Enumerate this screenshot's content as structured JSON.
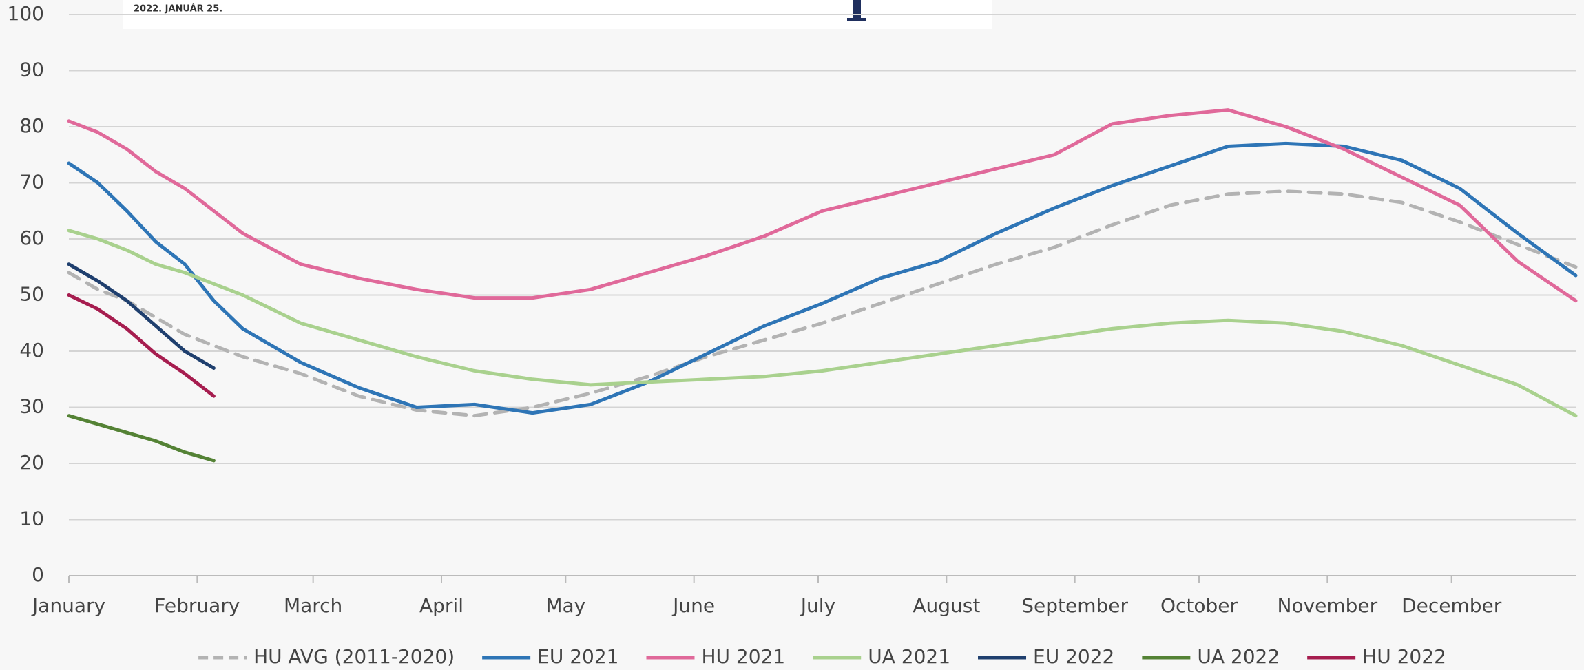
{
  "header_text": "2022. JANUÁR 25.",
  "chart_data": {
    "type": "line",
    "x": [
      1,
      8,
      15,
      22,
      29,
      36,
      43,
      57,
      71,
      85,
      99,
      113,
      127,
      141,
      155,
      169,
      183,
      197,
      211,
      225,
      239,
      253,
      267,
      281,
      295,
      309,
      323,
      337,
      351,
      365
    ],
    "xlim": [
      1,
      365
    ],
    "xticks": [
      {
        "value": 1,
        "label": "January"
      },
      {
        "value": 32,
        "label": "February"
      },
      {
        "value": 60,
        "label": "March"
      },
      {
        "value": 91,
        "label": "April"
      },
      {
        "value": 121,
        "label": "May"
      },
      {
        "value": 152,
        "label": "June"
      },
      {
        "value": 182,
        "label": "July"
      },
      {
        "value": 213,
        "label": "August"
      },
      {
        "value": 244,
        "label": "September"
      },
      {
        "value": 274,
        "label": "October"
      },
      {
        "value": 305,
        "label": "November"
      },
      {
        "value": 335,
        "label": "December"
      }
    ],
    "ylim": [
      0,
      100
    ],
    "yticks": [
      0,
      10,
      20,
      30,
      40,
      50,
      60,
      70,
      80,
      90,
      100
    ],
    "grid": true,
    "legend": "bottom",
    "series": [
      {
        "name": "HU AVG (2011-2020)",
        "color": "#b3b3b3",
        "dashed": true,
        "values": [
          54,
          51,
          49,
          46,
          43,
          41,
          39,
          36,
          32,
          29.5,
          28.5,
          30,
          32.5,
          35.5,
          39,
          42,
          45,
          48.5,
          52,
          55.5,
          58.5,
          62.5,
          66,
          68,
          68.5,
          68,
          66.5,
          63,
          59,
          55
        ]
      },
      {
        "name": "EU 2021",
        "color": "#2e75b6",
        "values": [
          73.5,
          70,
          65,
          59.5,
          55.5,
          49,
          44,
          38,
          33.5,
          30,
          30.5,
          29,
          30.5,
          34.5,
          39.5,
          44.5,
          48.5,
          53,
          56,
          61,
          65.5,
          69.5,
          73,
          76.5,
          77,
          76.5,
          74,
          69,
          61,
          53.5
        ]
      },
      {
        "name": "HU 2021",
        "color": "#e0699a",
        "values": [
          81,
          79,
          76,
          72,
          69,
          65,
          61,
          55.5,
          53,
          51,
          49.5,
          49.5,
          51,
          54,
          57,
          60.5,
          65,
          67.5,
          70,
          72.5,
          75,
          80.5,
          82,
          83,
          80,
          76,
          71,
          66,
          56,
          49
        ]
      },
      {
        "name": "UA 2021",
        "color": "#a9d18e",
        "values": [
          61.5,
          60,
          58,
          55.5,
          54,
          52,
          50,
          45,
          42,
          39,
          36.5,
          35,
          34,
          34.5,
          35,
          35.5,
          36.5,
          38,
          39.5,
          41,
          42.5,
          44,
          45,
          45.5,
          45,
          43.5,
          41,
          37.5,
          34,
          28.5
        ]
      },
      {
        "name": "EU 2022",
        "color": "#1f3f6e",
        "values": [
          55.5,
          52.5,
          49,
          44.5,
          40,
          37,
          null,
          null,
          null,
          null,
          null,
          null,
          null,
          null,
          null,
          null,
          null,
          null,
          null,
          null,
          null,
          null,
          null,
          null,
          null,
          null,
          null,
          null,
          null,
          null
        ]
      },
      {
        "name": "UA 2022",
        "color": "#548235",
        "values": [
          28.5,
          27,
          25.5,
          24,
          22,
          20.5,
          null,
          null,
          null,
          null,
          null,
          null,
          null,
          null,
          null,
          null,
          null,
          null,
          null,
          null,
          null,
          null,
          null,
          null,
          null,
          null,
          null,
          null,
          null,
          null
        ]
      },
      {
        "name": "HU 2022",
        "color": "#a61d4f",
        "values": [
          50,
          47.5,
          44,
          39.5,
          36,
          32,
          null,
          null,
          null,
          null,
          null,
          null,
          null,
          null,
          null,
          null,
          null,
          null,
          null,
          null,
          null,
          null,
          null,
          null,
          null,
          null,
          null,
          null,
          null,
          null
        ]
      }
    ]
  }
}
